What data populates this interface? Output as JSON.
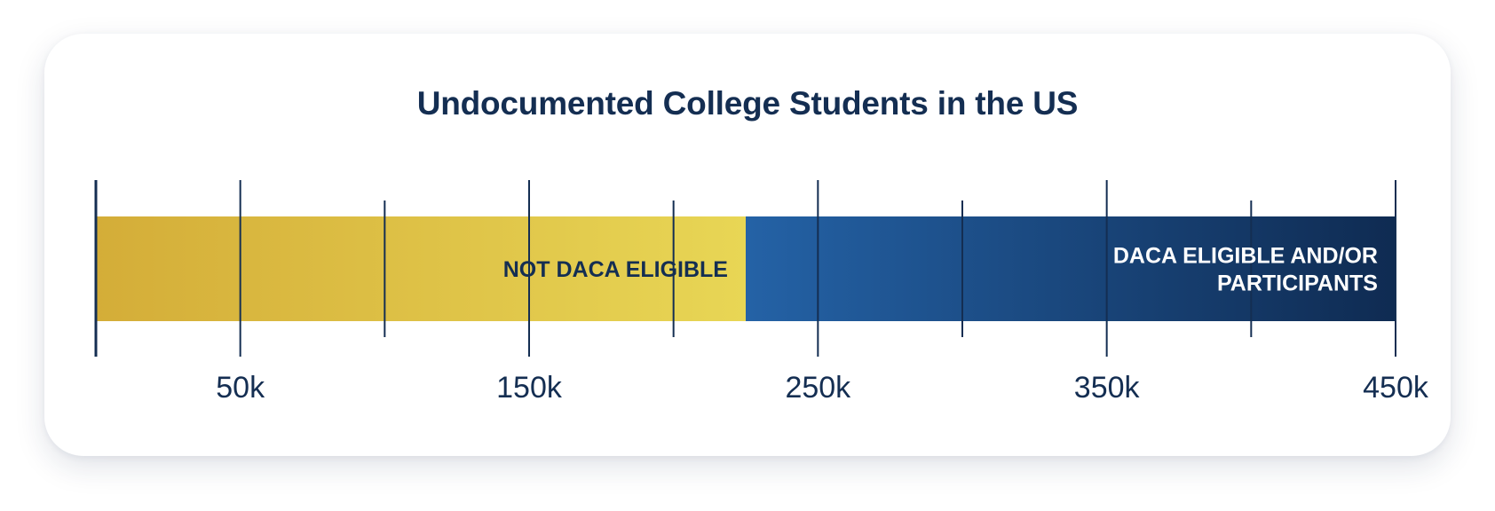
{
  "chart_data": {
    "type": "bar",
    "orientation": "horizontal-stacked",
    "title": "Undocumented College Students in the US",
    "xlabel": "",
    "ylabel": "",
    "xlim": [
      0,
      450000
    ],
    "major_ticks": [
      0,
      50000,
      150000,
      250000,
      350000,
      450000
    ],
    "minor_ticks": [
      100000,
      200000,
      300000,
      400000
    ],
    "tick_labels": [
      "50k",
      "150k",
      "250k",
      "350k",
      "450k"
    ],
    "tick_label_values": [
      50000,
      150000,
      250000,
      350000,
      450000
    ],
    "series": [
      {
        "name": "NOT DACA ELIGIBLE",
        "label_lines": [
          "NOT DACA ELIGIBLE"
        ],
        "value": 225000,
        "color_start": "#d4ad38",
        "color_end": "#e8d655",
        "label_color": "#142e52"
      },
      {
        "name": "DACA ELIGIBLE AND/OR PARTICIPANTS",
        "label_lines": [
          "DACA ELIGIBLE AND/OR",
          "PARTICIPANTS"
        ],
        "value": 225000,
        "color_start": "#2462a6",
        "color_end": "#0f2b52",
        "label_color": "#ffffff"
      }
    ],
    "grid": false,
    "legend": "none"
  },
  "colors": {
    "text": "#142e52",
    "axis": "#142e52"
  }
}
